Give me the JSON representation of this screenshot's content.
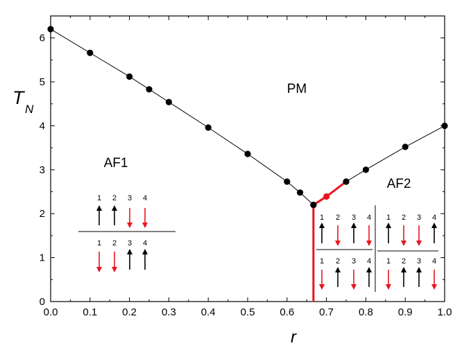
{
  "chart_data": {
    "type": "line",
    "xlabel": "r",
    "ylabel": "T",
    "ylabel_sub": "N",
    "xlim": [
      0.0,
      1.0
    ],
    "ylim": [
      0,
      6.5
    ],
    "xticks": [
      "0.0",
      "0.1",
      "0.2",
      "0.3",
      "0.4",
      "0.5",
      "0.6",
      "0.7",
      "0.8",
      "0.9",
      "1.0"
    ],
    "yticks": [
      "0",
      "1",
      "2",
      "3",
      "4",
      "5",
      "6"
    ],
    "grid": false,
    "series": [
      {
        "color": "#000000",
        "x": [
          0.0,
          0.1,
          0.2,
          0.25,
          0.3,
          0.4,
          0.5,
          0.6,
          0.633,
          0.667
        ],
        "y": [
          6.2,
          5.66,
          5.12,
          4.83,
          4.54,
          3.96,
          3.36,
          2.73,
          2.48,
          2.2
        ]
      },
      {
        "color": "#e8141c",
        "x": [
          0.667,
          0.7,
          0.75
        ],
        "y": [
          2.2,
          2.39,
          2.73
        ]
      },
      {
        "color": "#000000",
        "x": [
          0.75,
          0.8,
          0.9,
          1.0
        ],
        "y": [
          2.73,
          3.0,
          3.52,
          4.0
        ]
      },
      {
        "color": "#e8141c",
        "marker": "none",
        "x": [
          0.667,
          0.667
        ],
        "y": [
          0,
          2.2
        ]
      }
    ],
    "regions": [
      {
        "label": "PM"
      },
      {
        "label": "AF1"
      },
      {
        "label": "AF2"
      }
    ],
    "spin_configs": {
      "numbers": [
        "1",
        "2",
        "3",
        "4"
      ],
      "af1": [
        [
          "up",
          "up",
          "down",
          "down"
        ],
        [
          "down",
          "down",
          "up",
          "up"
        ]
      ],
      "af2_left": [
        [
          "up",
          "down",
          "up",
          "down"
        ],
        [
          "down",
          "up",
          "down",
          "up"
        ]
      ],
      "af2_right": [
        [
          "up",
          "down",
          "down",
          "up"
        ],
        [
          "down",
          "up",
          "up",
          "down"
        ]
      ],
      "colors": {
        "up": "#000000",
        "down": "#e8141c"
      }
    }
  }
}
